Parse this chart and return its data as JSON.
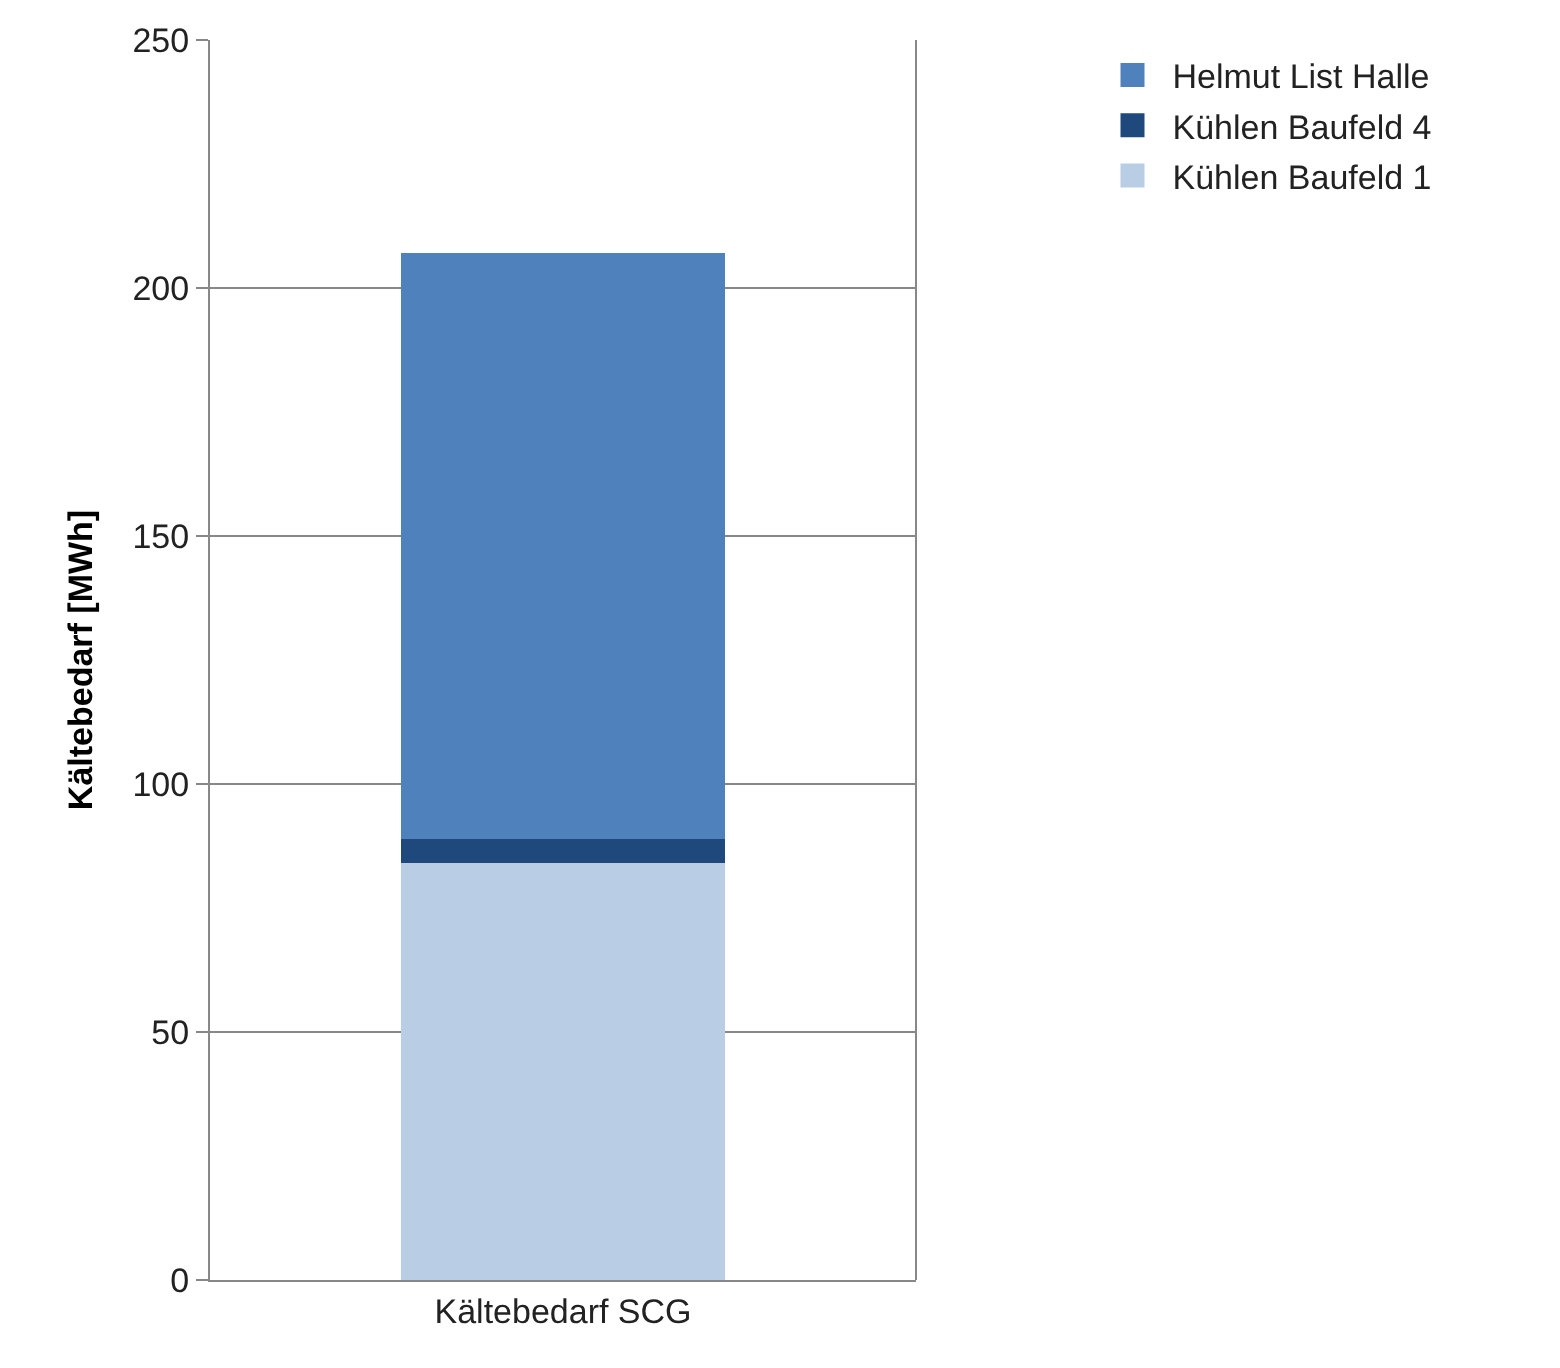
{
  "chart_data": {
    "type": "bar",
    "stacked": true,
    "ylabel": "Kältebedarf [MWh]",
    "categories": [
      "Kältebedarf SCG"
    ],
    "series": [
      {
        "name": "Kühlen Baufeld 1",
        "color": "#b9cde5",
        "values": [
          84
        ]
      },
      {
        "name": "Kühlen Baufeld 4",
        "color": "#1f497d",
        "values": [
          5
        ]
      },
      {
        "name": "Helmut List Halle",
        "color": "#4f81bd",
        "values": [
          118
        ]
      }
    ],
    "ylim": [
      0,
      250
    ],
    "yticks": [
      0,
      50,
      100,
      150,
      200,
      250
    ],
    "grid": "y",
    "legend": "top right"
  }
}
